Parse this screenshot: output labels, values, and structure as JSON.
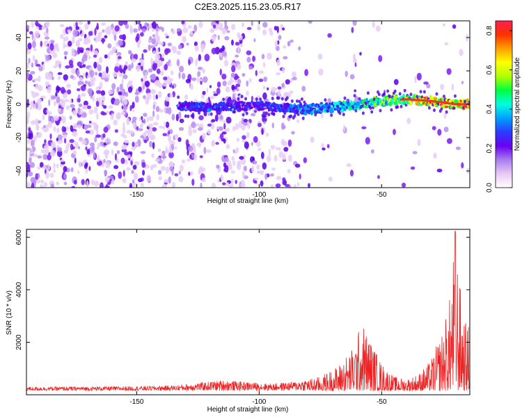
{
  "title": "C2E3.2025.115.23.05.R17",
  "chart_data": [
    {
      "type": "heatmap",
      "xlabel": "Height of straight line (km)",
      "ylabel": "Frequency (Hz)",
      "xlim": [
        -195,
        -14
      ],
      "ylim": [
        -50,
        50
      ],
      "xticks": [
        -150,
        -100,
        -50
      ],
      "yticks": [
        -40,
        -20,
        0,
        20,
        40
      ],
      "xtick_labels": [
        "-150",
        "-100",
        "-50"
      ],
      "ytick_labels": [
        "-40",
        "-20",
        "0",
        "20",
        "40"
      ],
      "colorbar": {
        "label": "Normalized spectral amplitude",
        "range": [
          0,
          0.85
        ],
        "ticks": [
          0,
          0.2,
          0.4,
          0.6,
          0.8
        ],
        "tick_labels": [
          "0.0",
          "0.2",
          "0.4",
          "0.6",
          "0.8"
        ],
        "colors": [
          "#ffffff",
          "#e9c8f5",
          "#a87df0",
          "#6a00f0",
          "#2a3cff",
          "#00a0ff",
          "#00ffe0",
          "#00ff40",
          "#b0ff00",
          "#ffff00",
          "#ffa000",
          "#ff3000",
          "#ff2050"
        ]
      },
      "ridge": {
        "x": [
          -133,
          -120,
          -110,
          -100,
          -90,
          -80,
          -70,
          -60,
          -50,
          -40,
          -30,
          -20,
          -14
        ],
        "y": [
          -1,
          -2,
          -1,
          -1,
          -2,
          -3,
          -2,
          0,
          2,
          3,
          2,
          0,
          0
        ],
        "amplitude": [
          0.3,
          0.35,
          0.3,
          0.3,
          0.35,
          0.4,
          0.45,
          0.5,
          0.6,
          0.7,
          0.8,
          0.85,
          0.8
        ]
      }
    },
    {
      "type": "line",
      "xlabel": "Height of straight line (km)",
      "ylabel": "SNR (10 * v/v)",
      "xlim": [
        -195,
        -14
      ],
      "ylim": [
        0,
        6300
      ],
      "xticks": [
        -150,
        -100,
        -50
      ],
      "yticks": [
        2000,
        4000,
        6000
      ],
      "xtick_labels": [
        "-150",
        "-100",
        "-50"
      ],
      "ytick_labels": [
        "2000",
        "4000",
        "6000"
      ],
      "color": "#ee2222",
      "envelope": {
        "x": [
          -195,
          -150,
          -135,
          -125,
          -115,
          -105,
          -95,
          -85,
          -75,
          -68,
          -62,
          -58,
          -55,
          -50,
          -45,
          -40,
          -35,
          -30,
          -25,
          -22,
          -20,
          -18,
          -16,
          -14
        ],
        "y": [
          300,
          320,
          350,
          450,
          550,
          480,
          420,
          500,
          700,
          1100,
          1800,
          2800,
          2200,
          1200,
          700,
          600,
          800,
          1300,
          2500,
          3800,
          6300,
          4200,
          2800,
          2600
        ]
      }
    }
  ]
}
